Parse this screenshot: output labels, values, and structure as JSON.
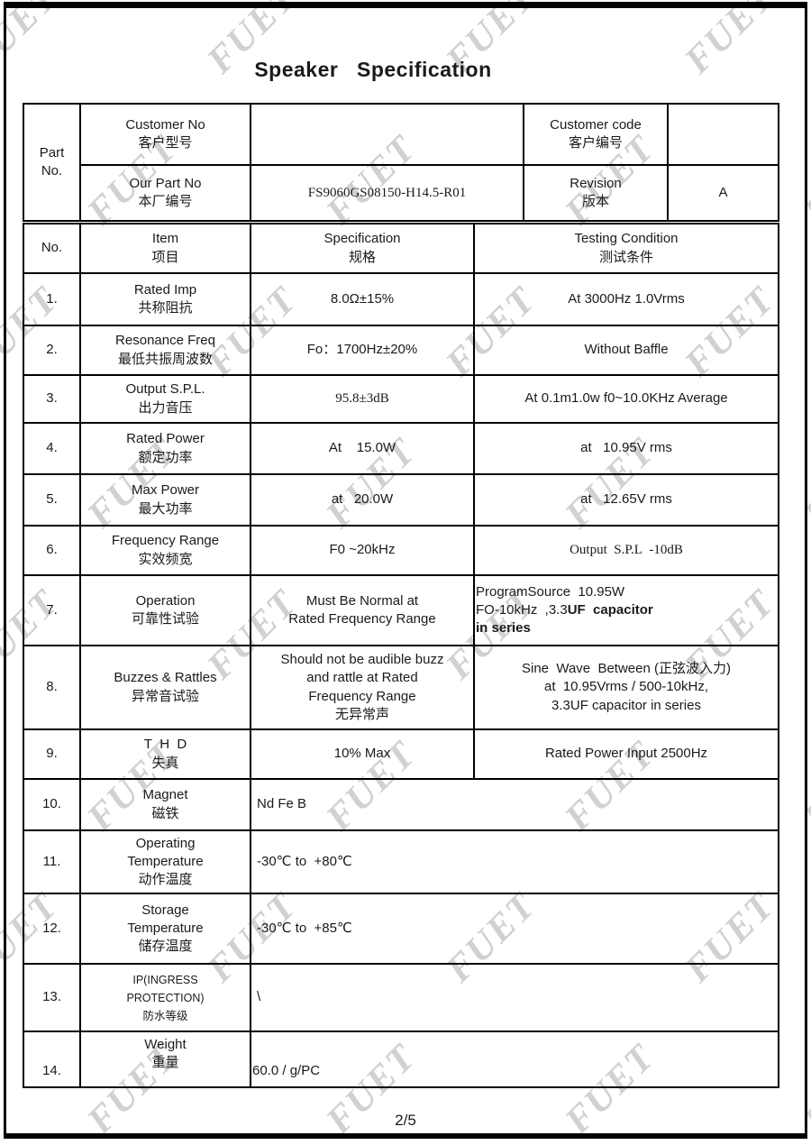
{
  "page": {
    "title": "Speaker   Specification",
    "footer": "2/5"
  },
  "watermark": {
    "text": "FUET"
  },
  "part_table": {
    "corner": [
      "Part",
      "No."
    ],
    "customer_no": {
      "en": "Customer No",
      "zh": "客户型号"
    },
    "customer_no_value": "",
    "customer_code": {
      "en": "Customer code",
      "zh": "客户编号"
    },
    "customer_code_value": "",
    "our_part_no": {
      "en": "Our Part No",
      "zh": "本厂编号"
    },
    "our_part_no_value": "FS9060GS08150-H14.5-R01",
    "revision": {
      "en": "Revision",
      "zh": "版本"
    },
    "revision_value": "A"
  },
  "spec_table": {
    "header": {
      "no": "No.",
      "item_en": "Item",
      "item_zh": "项目",
      "spec_en": "Specification",
      "spec_zh": "规格",
      "test_en": "Testing Condition",
      "test_zh": "测试条件"
    },
    "rows": [
      {
        "no": "1.",
        "item": [
          "Rated Imp",
          "共称阻抗"
        ],
        "spec": [
          "8.0Ω±15%"
        ],
        "test": [
          "At 3000Hz 1.0Vrms"
        ]
      },
      {
        "no": "2.",
        "item": [
          "Resonance Freq",
          "最低共振周波数"
        ],
        "spec": [
          "Fo：1700Hz±20%"
        ],
        "test": [
          "Without Baffle"
        ]
      },
      {
        "no": "3.",
        "item": [
          "Output S.P.L.",
          "出力音压"
        ],
        "spec": [
          "95.8±3dB"
        ],
        "spec_serif": true,
        "test": [
          "At 0.1m1.0w f0~10.0KHz Average"
        ]
      },
      {
        "no": "4.",
        "item": [
          "Rated Power",
          "额定功率"
        ],
        "spec": [
          "At    15.0W"
        ],
        "test": [
          "at   10.95V rms"
        ]
      },
      {
        "no": "5.",
        "item": [
          "Max Power",
          "最大功率"
        ],
        "spec": [
          "at   20.0W"
        ],
        "test": [
          "at   12.65V rms"
        ]
      },
      {
        "no": "6.",
        "item": [
          "Frequency Range",
          "实效频宽"
        ],
        "spec": [
          "F0 ~20kHz"
        ],
        "test": [
          "Output  S.P.L  -10dB"
        ],
        "test_serif": true
      },
      {
        "no": "7.",
        "item": [
          "Operation",
          "可靠性试验"
        ],
        "spec": [
          "Must Be Normal at",
          "Rated Frequency Range"
        ],
        "test_rich": [
          [
            {
              "t": "ProgramSource  10.95W",
              "b": false
            }
          ],
          [
            {
              "t": "FO-10kHz  ,3.3",
              "b": false
            },
            {
              "t": "UF  capacitor",
              "b": true
            }
          ],
          [
            {
              "t": "in series",
              "b": true
            }
          ]
        ],
        "test_left": true
      },
      {
        "no": "8.",
        "item": [
          "Buzzes & Rattles",
          "异常音试验"
        ],
        "spec": [
          "Should not be audible buzz",
          "and rattle at Rated",
          "Frequency Range",
          "无异常声"
        ],
        "test": [
          "Sine  Wave  Between (正弦波入力)",
          "at  10.95Vrms / 500-10kHz,",
          "3.3UF capacitor in series"
        ]
      },
      {
        "no": "9.",
        "item": [
          "T  H  D",
          "失真"
        ],
        "spec": [
          "10% Max"
        ],
        "test": [
          "Rated Power Input 2500Hz"
        ]
      },
      {
        "no": "10.",
        "item": [
          "Magnet",
          "磁铁"
        ],
        "merged": [
          "Nd Fe B"
        ]
      },
      {
        "no": "11.",
        "item": [
          "Operating",
          "Temperature",
          "动作温度"
        ],
        "merged": [
          "-30℃ to  +80℃"
        ]
      },
      {
        "no": "12.",
        "item": [
          "Storage",
          "Temperature",
          "储存温度"
        ],
        "merged": [
          "-30℃ to  +85℃"
        ]
      },
      {
        "no": "13.",
        "item": [
          "IP(INGRESS",
          "PROTECTION)",
          "防水等级"
        ],
        "item_small": true,
        "merged": [
          "\\"
        ]
      },
      {
        "no": "14.",
        "item": [
          "Weight",
          "重量"
        ],
        "item_top": true,
        "no_bottom": true,
        "merged": [
          "60.0 / g/PC"
        ],
        "merged_flush": true
      }
    ]
  }
}
